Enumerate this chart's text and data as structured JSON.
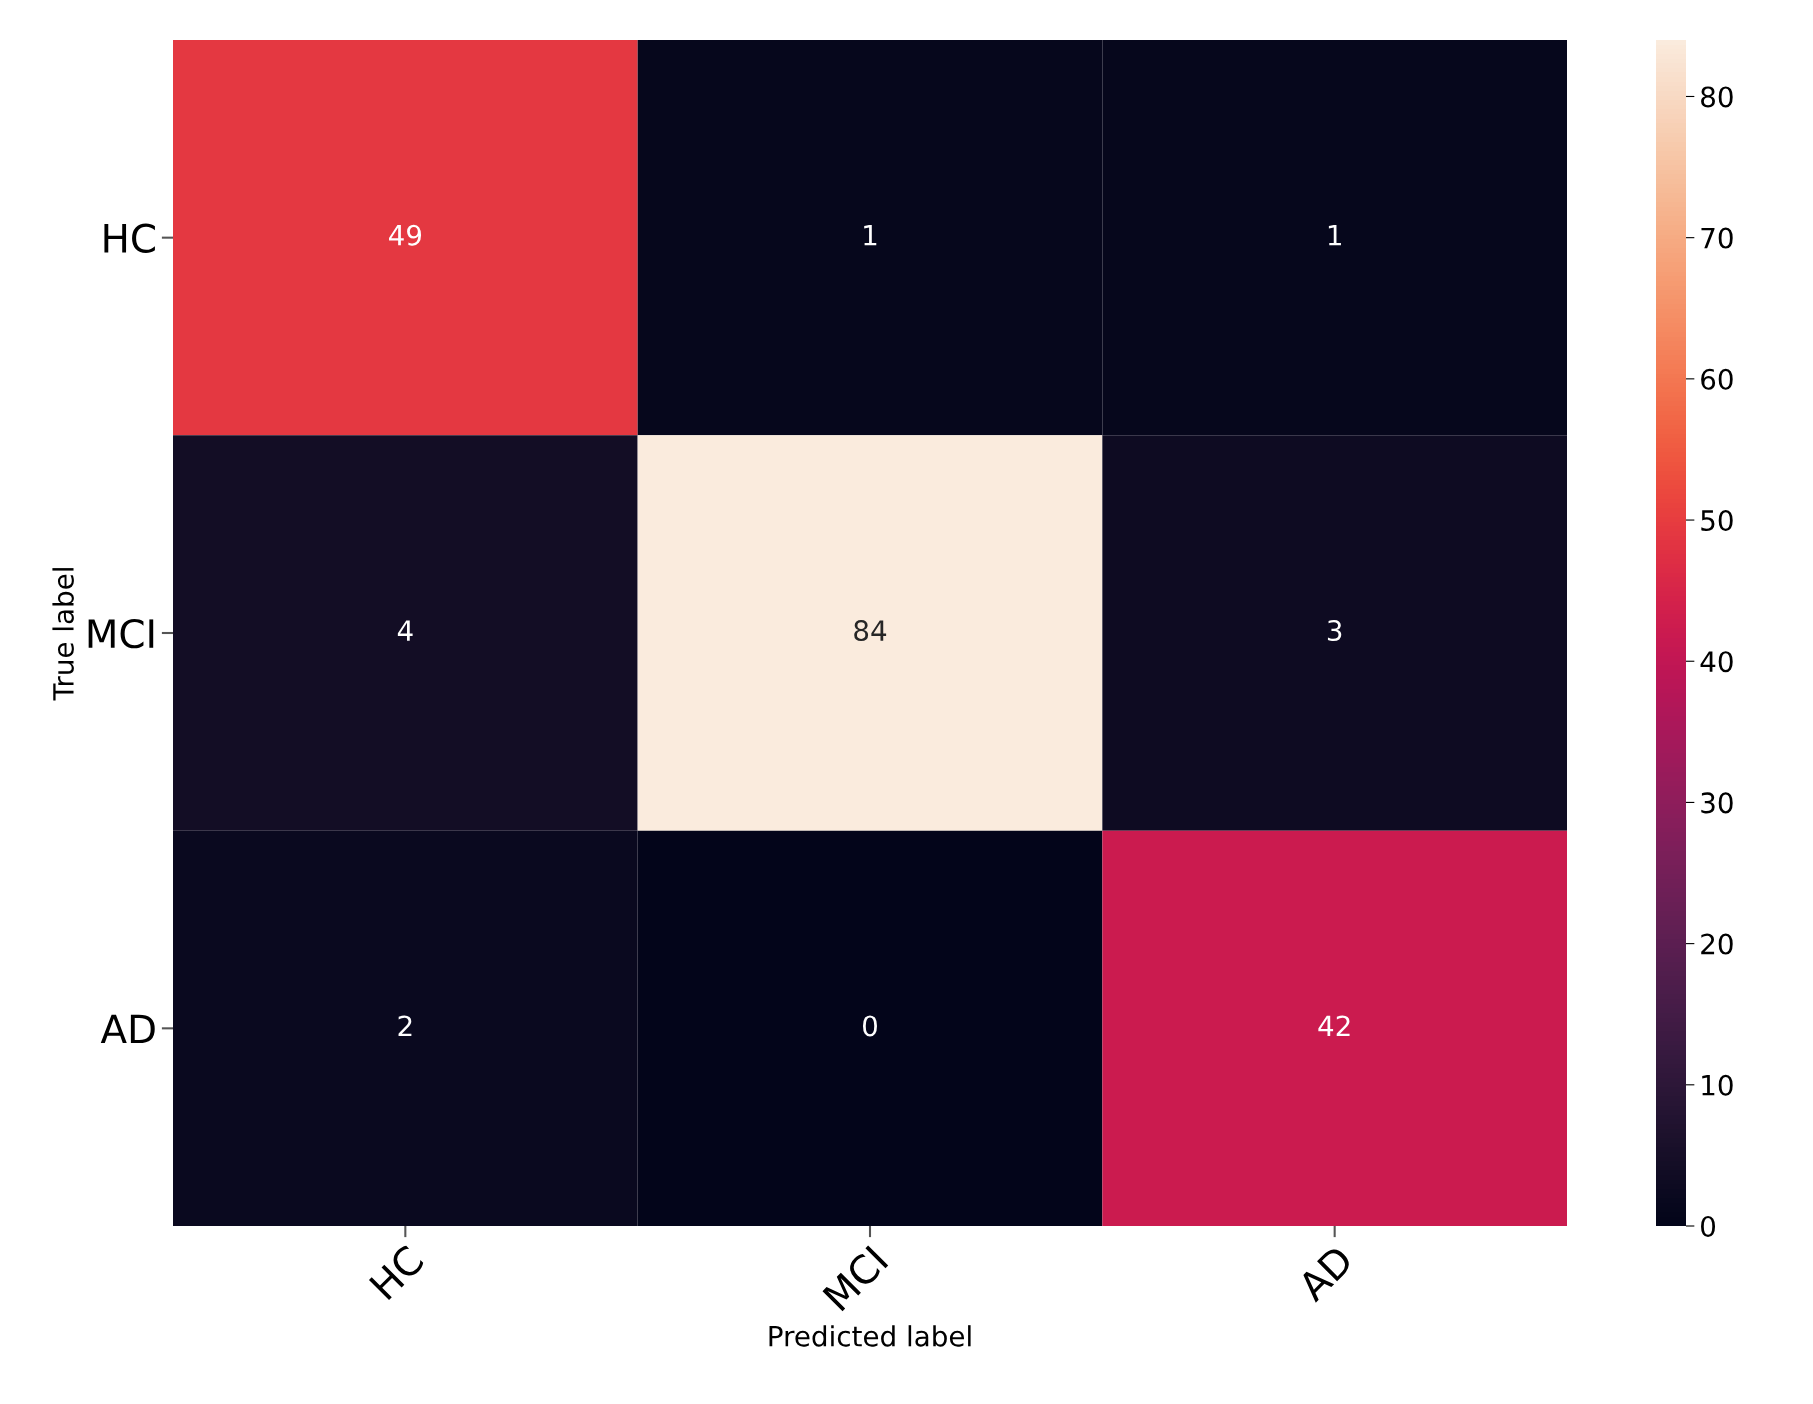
{
  "chart_data": {
    "type": "heatmap",
    "xlabel": "Predicted label",
    "ylabel": "True label",
    "categories": [
      "HC",
      "MCI",
      "AD"
    ],
    "y_categories": [
      "HC",
      "MCI",
      "AD"
    ],
    "cells": [
      [
        49,
        1,
        1
      ],
      [
        4,
        84,
        3
      ],
      [
        2,
        0,
        42
      ]
    ],
    "data_labels": true,
    "clim": [
      0,
      84
    ],
    "cticks": [
      0,
      10,
      20,
      30,
      40,
      50,
      60,
      70,
      80
    ]
  }
}
